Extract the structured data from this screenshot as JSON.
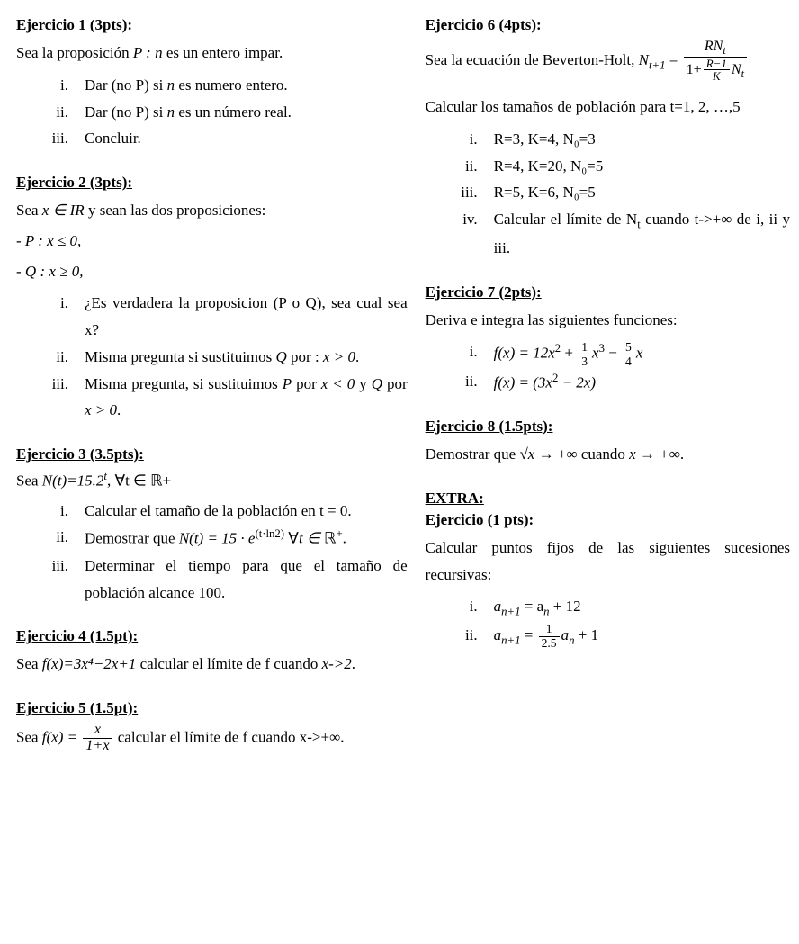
{
  "left": {
    "e1": {
      "title": "Ejercicio 1 (3pts):",
      "intro_pre": "Sea la proposición ",
      "intro_mid": "P : n",
      "intro_post": " es un entero impar.",
      "i_pre": "Dar (no P) si ",
      "i_var": "n",
      "i_post": " es numero entero.",
      "ii_pre": "Dar (no P) si ",
      "ii_var": "n",
      "ii_post": " es un número real.",
      "iii": "Concluir."
    },
    "e2": {
      "title": "Ejercicio 2 (3pts):",
      "intro_pre": "Sea ",
      "intro_math": "x ∈ IR",
      "intro_post": " y sean las dos proposiciones:",
      "p_line_pre": "- ",
      "p_line_math": "P : x ≤ 0,",
      "q_line_pre": "- ",
      "q_line_math": "Q : x ≥ 0,",
      "i": "¿Es verdadera la proposicion (P o Q), sea cual sea x?",
      "ii_pre": "Misma pregunta si sustituimos ",
      "ii_q": "Q",
      "ii_mid": " por : ",
      "ii_math": "x > 0",
      "ii_post": ".",
      "iii_pre": "Misma pregunta, si sustituimos ",
      "iii_p": "P",
      "iii_mid1": " por ",
      "iii_m1": "x < 0",
      "iii_mid2": " y ",
      "iii_q": "Q",
      "iii_mid3": " por ",
      "iii_m2": "x > 0",
      "iii_post": "."
    },
    "e3": {
      "title": "Ejercicio 3 (3.5pts):",
      "intro_pre": "Sea ",
      "intro_math": "N(t)=15.2",
      "intro_sup": "t",
      "intro_post": ", ∀t ∈ ",
      "intro_R": "ℝ",
      "intro_plus": "+",
      "i": "Calcular el tamaño de la población en t = 0.",
      "ii_pre": "Demostrar que ",
      "ii_math_a": "N(t) = 15 · e",
      "ii_exp": "(t·ln2)",
      "ii_mid": " ∀",
      "ii_mid_i": "t ∈ ",
      "ii_R": "ℝ",
      "ii_plus": "+",
      "ii_post": ".",
      "iii": "Determinar el tiempo para que el tamaño de población alcance 100."
    },
    "e4": {
      "title": "Ejercicio 4 (1.5pt):",
      "pre": "Sea ",
      "math": "f(x)=3x⁴−2x+1",
      "mid": " calcular el límite de f cuando ",
      "lim": "x->2",
      "post": "."
    },
    "e5": {
      "title": "Ejercicio 5 (1.5pt):",
      "pre": "Sea ",
      "fx": "f(x) = ",
      "frac_top": "x",
      "frac_bot": "1+x",
      "mid": " calcular el límite de f cuando x->+∞."
    }
  },
  "right": {
    "e6": {
      "title": "Ejercicio 6 (4pts):",
      "intro_pre": "Sea la ecuación de Beverton-Holt, ",
      "lhs": "N",
      "lhs_sub": "t+1",
      "eq": " = ",
      "top_R": "RN",
      "top_sub": "t",
      "bot_pre": "1+",
      "bot_frac_top": "R−1",
      "bot_frac_bot": "K",
      "bot_post": "N",
      "bot_post_sub": "t",
      "calc_line": "Calcular los tamaños de población para t=1, 2, …,5",
      "i": "R=3, K=4, N₀=3",
      "ii": "R=4, K=20, N₀=5",
      "iii": "R=5, K=6, N₀=5",
      "iv_pre": "Calcular el límite de N",
      "iv_sub": "t",
      "iv_post": " cuando t->+∞ de i, ii y iii."
    },
    "e7": {
      "title": "Ejercicio 7 (2pts):",
      "intro": "Deriva e integra las siguientes funciones:",
      "i_pre": "f(x) = 12x",
      "i_sq": "2",
      "i_mid1": " + ",
      "i_f1_top": "1",
      "i_f1_bot": "3",
      "i_x3": "x",
      "i_x3_pow": "3",
      "i_mid2": " − ",
      "i_f2_top": "5",
      "i_f2_bot": "4",
      "i_x": "x",
      "ii_pre": "f(x) = (3x",
      "ii_sq": "2",
      "ii_post": " − 2x)"
    },
    "e8": {
      "title": "Ejercicio 8 (1.5pts):",
      "pre": "Demostrar que ",
      "sqrt": "√x",
      "mid": " → +∞ cuando ",
      "lim": "x → +∞",
      "post": "."
    },
    "extra": {
      "extra": "EXTRA:",
      "title": "Ejercicio (1 pts):",
      "intro": "Calcular puntos fijos de las siguientes sucesiones recursivas:",
      "i_lhs": "a",
      "i_lhs_sub": "n+1",
      "i_eq": " = a",
      "i_rhs_sub": "n",
      "i_post": " + 12",
      "ii_lhs": "a",
      "ii_lhs_sub": "n+1",
      "ii_eq": " = ",
      "ii_f_top": "1",
      "ii_f_bot": "2.5",
      "ii_a": "a",
      "ii_a_sub": "n",
      "ii_post": " + 1"
    }
  },
  "romans": {
    "i": "i.",
    "ii": "ii.",
    "iii": "iii.",
    "iv": "iv."
  }
}
